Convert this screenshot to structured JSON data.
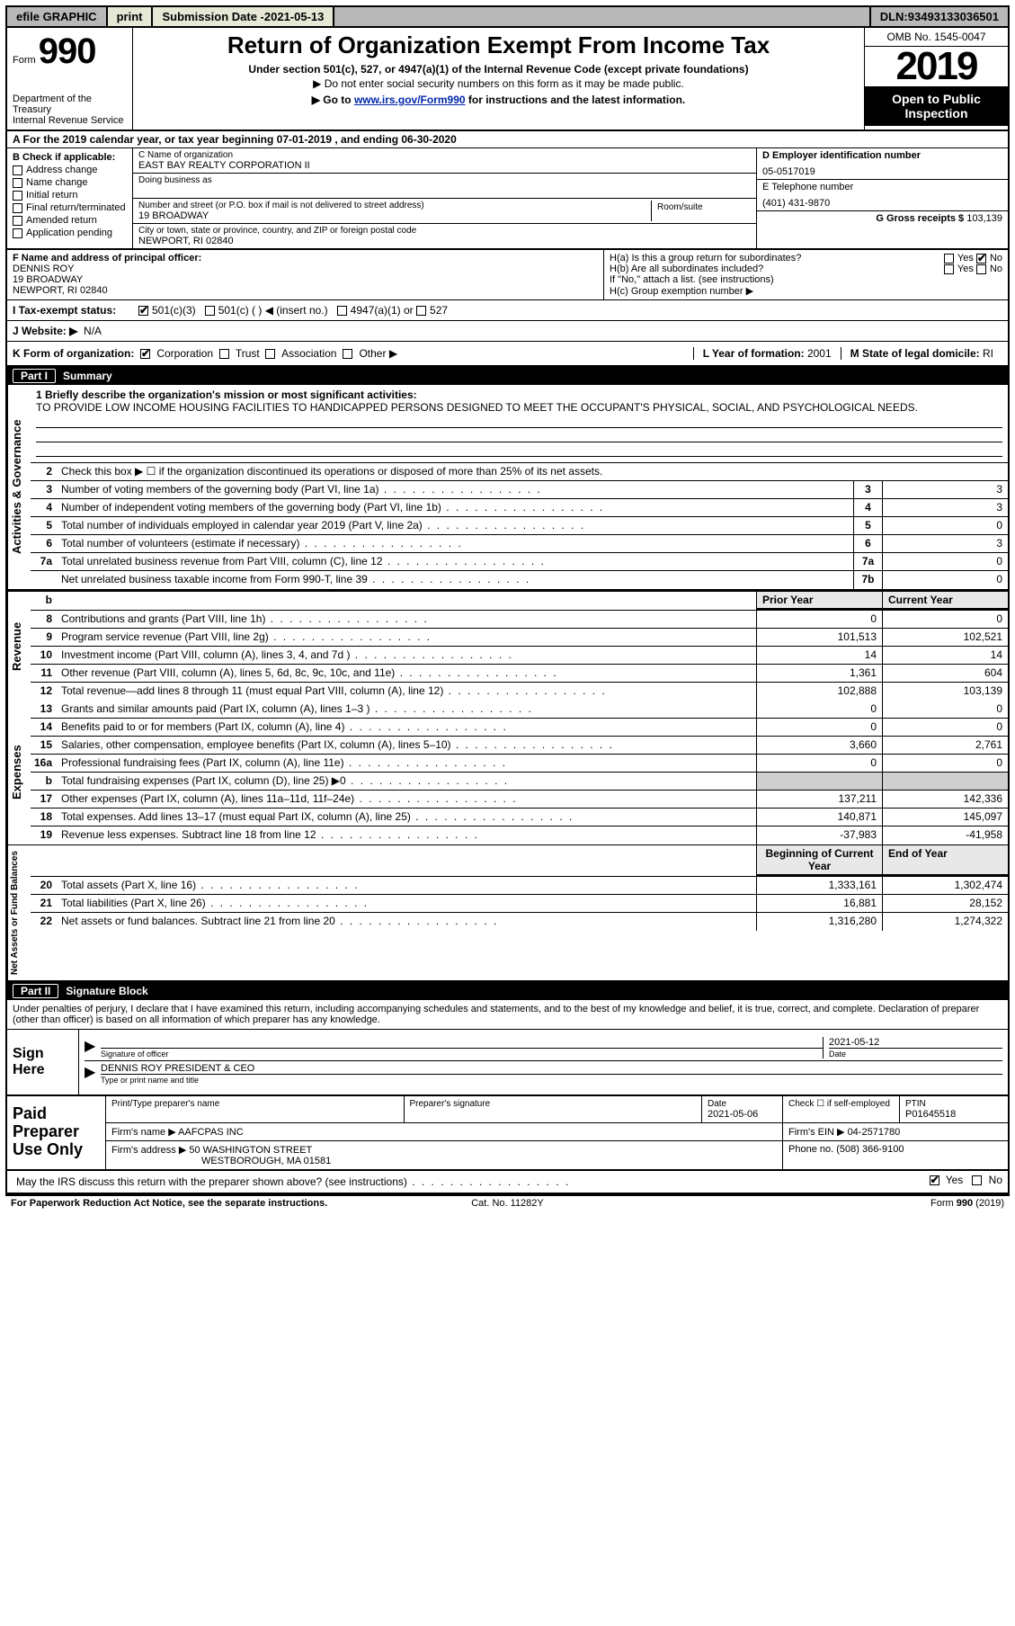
{
  "topbar": {
    "efile": "efile GRAPHIC",
    "print": "print",
    "subdate_label": "Submission Date - ",
    "subdate": "2021-05-13",
    "dln_label": "DLN: ",
    "dln": "93493133036501"
  },
  "header": {
    "form_prefix": "Form",
    "form_number": "990",
    "dept": "Department of the Treasury\nInternal Revenue Service",
    "title": "Return of Organization Exempt From Income Tax",
    "sub": "Under section 501(c), 527, or 4947(a)(1) of the Internal Revenue Code (except private foundations)",
    "sub2": "▶ Do not enter social security numbers on this form as it may be made public.",
    "sub3_pre": "▶ Go to ",
    "sub3_link": "www.irs.gov/Form990",
    "sub3_post": " for instructions and the latest information.",
    "omb": "OMB No. 1545-0047",
    "year": "2019",
    "open": "Open to Public Inspection"
  },
  "rowA": "A For the 2019 calendar year, or tax year beginning 07-01-2019   , and ending 06-30-2020",
  "B": {
    "label": "B Check if applicable:",
    "opts": [
      "Address change",
      "Name change",
      "Initial return",
      "Final return/terminated",
      "Amended return",
      "Application pending"
    ]
  },
  "C": {
    "name_label": "C Name of organization",
    "name": "EAST BAY REALTY CORPORATION II",
    "dba_label": "Doing business as",
    "addr_label": "Number and street (or P.O. box if mail is not delivered to street address)",
    "room_label": "Room/suite",
    "addr": "19 BROADWAY",
    "city_label": "City or town, state or province, country, and ZIP or foreign postal code",
    "city": "NEWPORT, RI  02840"
  },
  "D": {
    "label": "D Employer identification number",
    "value": "05-0517019"
  },
  "E": {
    "label": "E Telephone number",
    "value": "(401) 431-9870"
  },
  "G": {
    "label": "G Gross receipts $ ",
    "value": "103,139"
  },
  "F": {
    "label": "F  Name and address of principal officer:",
    "name": "DENNIS ROY",
    "addr1": "19 BROADWAY",
    "addr2": "NEWPORT, RI  02840"
  },
  "H": {
    "a": "H(a)  Is this a group return for subordinates?",
    "a_ans": "No",
    "b": "H(b)  Are all subordinates included?",
    "b_note": "If \"No,\" attach a list. (see instructions)",
    "c": "H(c)  Group exemption number ▶"
  },
  "I": {
    "label": "I  Tax-exempt status:",
    "c3": "501(c)(3)",
    "c": "501(c) (  ) ◀ (insert no.)",
    "a1": "4947(a)(1) or",
    "s527": "527"
  },
  "J": {
    "label": "J  Website: ▶",
    "value": "N/A"
  },
  "K": {
    "label": "K Form of organization:",
    "opts": [
      "Corporation",
      "Trust",
      "Association",
      "Other ▶"
    ],
    "L_label": "L Year of formation: ",
    "L_value": "2001",
    "M_label": "M State of legal domicile: ",
    "M_value": "RI"
  },
  "part1": {
    "header": "Part I    Summary",
    "mission_label": "1  Briefly describe the organization's mission or most significant activities:",
    "mission": "TO PROVIDE LOW INCOME HOUSING FACILITIES TO HANDICAPPED PERSONS DESIGNED TO MEET THE OCCUPANT'S PHYSICAL, SOCIAL, AND PSYCHOLOGICAL NEEDS.",
    "line2": "Check this box ▶ ☐  if the organization discontinued its operations or disposed of more than 25% of its net assets.",
    "col_prior": "Prior Year",
    "col_current": "Current Year",
    "col_boy": "Beginning of Current Year",
    "col_eoy": "End of Year",
    "side_ag": "Activities & Governance",
    "side_rev": "Revenue",
    "side_exp": "Expenses",
    "side_net": "Net Assets or Fund Balances",
    "rows_ag": [
      {
        "n": "3",
        "d": "Number of voting members of the governing body (Part VI, line 1a)",
        "box": "3",
        "v": "3"
      },
      {
        "n": "4",
        "d": "Number of independent voting members of the governing body (Part VI, line 1b)",
        "box": "4",
        "v": "3"
      },
      {
        "n": "5",
        "d": "Total number of individuals employed in calendar year 2019 (Part V, line 2a)",
        "box": "5",
        "v": "0"
      },
      {
        "n": "6",
        "d": "Total number of volunteers (estimate if necessary)",
        "box": "6",
        "v": "3"
      },
      {
        "n": "7a",
        "d": "Total unrelated business revenue from Part VIII, column (C), line 12",
        "box": "7a",
        "v": "0"
      },
      {
        "n": "",
        "d": "Net unrelated business taxable income from Form 990-T, line 39",
        "box": "7b",
        "v": "0"
      }
    ],
    "rows_rev": [
      {
        "n": "8",
        "d": "Contributions and grants (Part VIII, line 1h)",
        "p": "0",
        "c": "0"
      },
      {
        "n": "9",
        "d": "Program service revenue (Part VIII, line 2g)",
        "p": "101,513",
        "c": "102,521"
      },
      {
        "n": "10",
        "d": "Investment income (Part VIII, column (A), lines 3, 4, and 7d )",
        "p": "14",
        "c": "14"
      },
      {
        "n": "11",
        "d": "Other revenue (Part VIII, column (A), lines 5, 6d, 8c, 9c, 10c, and 11e)",
        "p": "1,361",
        "c": "604"
      },
      {
        "n": "12",
        "d": "Total revenue—add lines 8 through 11 (must equal Part VIII, column (A), line 12)",
        "p": "102,888",
        "c": "103,139"
      }
    ],
    "rows_exp": [
      {
        "n": "13",
        "d": "Grants and similar amounts paid (Part IX, column (A), lines 1–3 )",
        "p": "0",
        "c": "0"
      },
      {
        "n": "14",
        "d": "Benefits paid to or for members (Part IX, column (A), line 4)",
        "p": "0",
        "c": "0"
      },
      {
        "n": "15",
        "d": "Salaries, other compensation, employee benefits (Part IX, column (A), lines 5–10)",
        "p": "3,660",
        "c": "2,761"
      },
      {
        "n": "16a",
        "d": "Professional fundraising fees (Part IX, column (A), line 11e)",
        "p": "0",
        "c": "0"
      },
      {
        "n": "b",
        "d": "Total fundraising expenses (Part IX, column (D), line 25) ▶0",
        "p": "",
        "c": "",
        "shade": true
      },
      {
        "n": "17",
        "d": "Other expenses (Part IX, column (A), lines 11a–11d, 11f–24e)",
        "p": "137,211",
        "c": "142,336"
      },
      {
        "n": "18",
        "d": "Total expenses. Add lines 13–17 (must equal Part IX, column (A), line 25)",
        "p": "140,871",
        "c": "145,097"
      },
      {
        "n": "19",
        "d": "Revenue less expenses. Subtract line 18 from line 12",
        "p": "-37,983",
        "c": "-41,958"
      }
    ],
    "rows_net": [
      {
        "n": "20",
        "d": "Total assets (Part X, line 16)",
        "p": "1,333,161",
        "c": "1,302,474"
      },
      {
        "n": "21",
        "d": "Total liabilities (Part X, line 26)",
        "p": "16,881",
        "c": "28,152"
      },
      {
        "n": "22",
        "d": "Net assets or fund balances. Subtract line 21 from line 20",
        "p": "1,316,280",
        "c": "1,274,322"
      }
    ]
  },
  "part2": {
    "header": "Part II    Signature Block",
    "decl": "Under penalties of perjury, I declare that I have examined this return, including accompanying schedules and statements, and to the best of my knowledge and belief, it is true, correct, and complete. Declaration of preparer (other than officer) is based on all information of which preparer has any knowledge.",
    "sign_here": "Sign Here",
    "sig_of_officer": "Signature of officer",
    "date_label": "Date",
    "sig_date": "2021-05-12",
    "officer_name": "DENNIS ROY PRESIDENT & CEO",
    "type_name": "Type or print name and title",
    "paid": "Paid Preparer Use Only",
    "prep_name_label": "Print/Type preparer's name",
    "prep_sig_label": "Preparer's signature",
    "prep_date_label": "Date",
    "prep_date": "2021-05-06",
    "check_self": "Check ☐ if self-employed",
    "ptin_label": "PTIN",
    "ptin": "P01645518",
    "firm_name_label": "Firm's name    ▶ ",
    "firm_name": "AAFCPAS INC",
    "firm_ein_label": "Firm's EIN ▶ ",
    "firm_ein": "04-2571780",
    "firm_addr_label": "Firm's address ▶ ",
    "firm_addr1": "50 WASHINGTON STREET",
    "firm_addr2": "WESTBOROUGH, MA  01581",
    "phone_label": "Phone no. ",
    "phone": "(508) 366-9100",
    "discuss": "May the IRS discuss this return with the preparer shown above? (see instructions)",
    "discuss_ans": "Yes"
  },
  "footer": {
    "left": "For Paperwork Reduction Act Notice, see the separate instructions.",
    "mid": "Cat. No. 11282Y",
    "right": "Form 990 (2019)"
  }
}
